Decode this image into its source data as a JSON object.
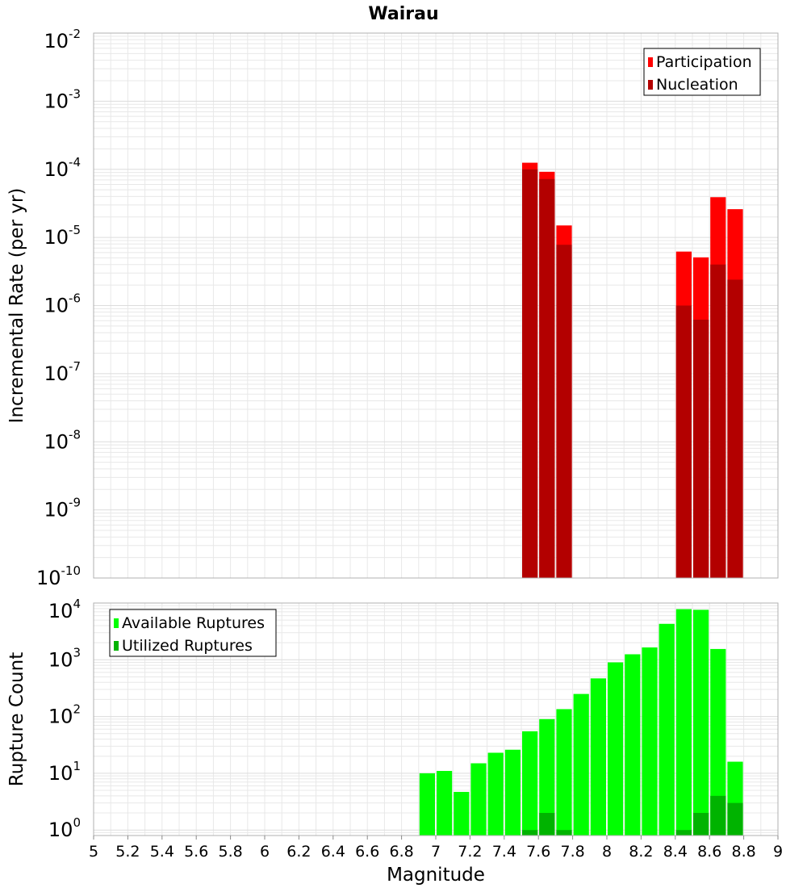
{
  "title": "Wairau",
  "x_axis": {
    "label": "Magnitude",
    "range": [
      5,
      9
    ],
    "ticks": [
      "5",
      "5.2",
      "5.4",
      "5.6",
      "5.8",
      "6",
      "6.2",
      "6.4",
      "6.6",
      "6.8",
      "7",
      "7.2",
      "7.4",
      "7.6",
      "7.8",
      "8",
      "8.2",
      "8.4",
      "8.6",
      "8.8",
      "9"
    ]
  },
  "colors": {
    "participation": "#ff0000",
    "nucleation": "#b30000",
    "available": "#00ff00",
    "utilized": "#00b300",
    "grid": "#e8e8e8"
  },
  "chart_data": [
    {
      "type": "bar",
      "ylabel": "Incremental Rate (per yr)",
      "yscale": "log",
      "ylim": [
        1e-10,
        0.01
      ],
      "y_ticks": [
        {
          "base": "10",
          "exp": "-10"
        },
        {
          "base": "10",
          "exp": "-9"
        },
        {
          "base": "10",
          "exp": "-8"
        },
        {
          "base": "10",
          "exp": "-7"
        },
        {
          "base": "10",
          "exp": "-6"
        },
        {
          "base": "10",
          "exp": "-5"
        },
        {
          "base": "10",
          "exp": "-4"
        },
        {
          "base": "10",
          "exp": "-3"
        },
        {
          "base": "10",
          "exp": "-2"
        }
      ],
      "bar_width": 0.1,
      "legend": {
        "placement": "top-right",
        "entries": [
          "Participation",
          "Nucleation"
        ]
      },
      "series": [
        {
          "name": "Participation",
          "points": [
            [
              7.55,
              0.000125
            ],
            [
              7.65,
              9.2e-05
            ],
            [
              7.75,
              1.5e-05
            ],
            [
              8.45,
              6.2e-06
            ],
            [
              8.55,
              5.1e-06
            ],
            [
              8.65,
              3.9e-05
            ],
            [
              8.75,
              2.6e-05
            ]
          ]
        },
        {
          "name": "Nucleation",
          "points": [
            [
              7.55,
              0.0001
            ],
            [
              7.65,
              7.2e-05
            ],
            [
              7.75,
              7.8e-06
            ],
            [
              8.45,
              1e-06
            ],
            [
              8.55,
              6.2e-07
            ],
            [
              8.65,
              4e-06
            ],
            [
              8.75,
              2.4e-06
            ]
          ]
        }
      ]
    },
    {
      "type": "bar",
      "ylabel": "Rupture Count",
      "yscale": "log",
      "ylim": [
        0.8,
        10000
      ],
      "y_ticks": [
        {
          "base": "10",
          "exp": "0"
        },
        {
          "base": "10",
          "exp": "1"
        },
        {
          "base": "10",
          "exp": "2"
        },
        {
          "base": "10",
          "exp": "3"
        },
        {
          "base": "10",
          "exp": "4"
        }
      ],
      "bar_width": 0.1,
      "legend": {
        "placement": "top-left",
        "entries": [
          "Available Ruptures",
          "Utilized Ruptures"
        ]
      },
      "series": [
        {
          "name": "Available Ruptures",
          "points": [
            [
              6.95,
              10
            ],
            [
              7.05,
              11
            ],
            [
              7.15,
              4.7
            ],
            [
              7.25,
              15
            ],
            [
              7.35,
              23
            ],
            [
              7.45,
              26
            ],
            [
              7.55,
              55
            ],
            [
              7.65,
              90
            ],
            [
              7.75,
              135
            ],
            [
              7.85,
              250
            ],
            [
              7.95,
              470
            ],
            [
              8.05,
              900
            ],
            [
              8.15,
              1250
            ],
            [
              8.25,
              1650
            ],
            [
              8.35,
              4300
            ],
            [
              8.45,
              7800
            ],
            [
              8.55,
              7600
            ],
            [
              8.65,
              1550
            ],
            [
              8.75,
              16
            ]
          ]
        },
        {
          "name": "Utilized Ruptures",
          "points": [
            [
              7.55,
              1
            ],
            [
              7.65,
              2
            ],
            [
              7.75,
              1
            ],
            [
              8.45,
              1
            ],
            [
              8.55,
              2
            ],
            [
              8.65,
              4
            ],
            [
              8.75,
              3
            ]
          ]
        }
      ]
    }
  ]
}
